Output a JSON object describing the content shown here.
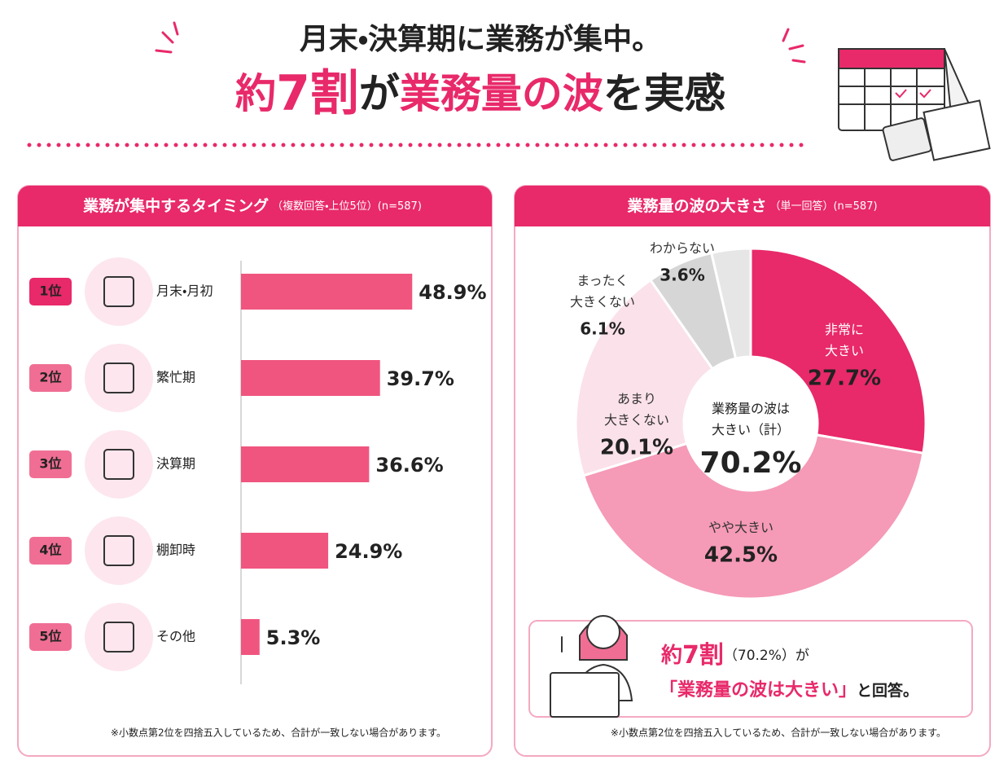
{
  "header": {
    "line1": "月末・決算期に業務が集中。",
    "line2": [
      "約",
      "7割",
      "が",
      "業務量の波",
      "を実感"
    ]
  },
  "chart_data": [
    {
      "type": "bar",
      "title": "業務が集中するタイミング",
      "subtitle": "（複数回答・上位5位）(n=587)",
      "ranks": [
        "1位",
        "2位",
        "3位",
        "4位",
        "5位"
      ],
      "categories": [
        "月末・月初",
        "繁忙期",
        "決算期",
        "棚卸時",
        "その他"
      ],
      "values": [
        48.9,
        39.7,
        36.6,
        24.9,
        5.3
      ],
      "value_labels": [
        "48.9%",
        "39.7%",
        "36.6%",
        "24.9%",
        "5.3%"
      ],
      "color": "#f0557f",
      "note": "※小数点第2位を四捨五入しているため、合計が一致しない場合があります。"
    },
    {
      "type": "donut",
      "title": "業務量の波の大きさ",
      "subtitle": "（単一回答）(n=587)",
      "categories": [
        "非常に\n大きい",
        "やや大きい",
        "あまり\n大きくない",
        "まったく\n大きくない",
        "わからない"
      ],
      "values": [
        27.7,
        42.5,
        20.1,
        6.1,
        3.6
      ],
      "value_labels": [
        "27.7%",
        "42.5%",
        "20.1%",
        "6.1%",
        "3.6%"
      ],
      "colors": [
        "#e8296a",
        "#f59ab7",
        "#fbe1ea",
        "#d6d6d6",
        "#e6e6e6"
      ],
      "center_label": "業務量の波は\n大きい（計）",
      "center_value_label": "70.2%",
      "callout": {
        "line1": [
          "約",
          "7割",
          "（70.2%）が"
        ],
        "line2": [
          "「業務量の波は大きい」",
          "と回答。"
        ]
      },
      "note": "※小数点第2位を四捨五入しているため、合計が一致しない場合があります。"
    }
  ]
}
